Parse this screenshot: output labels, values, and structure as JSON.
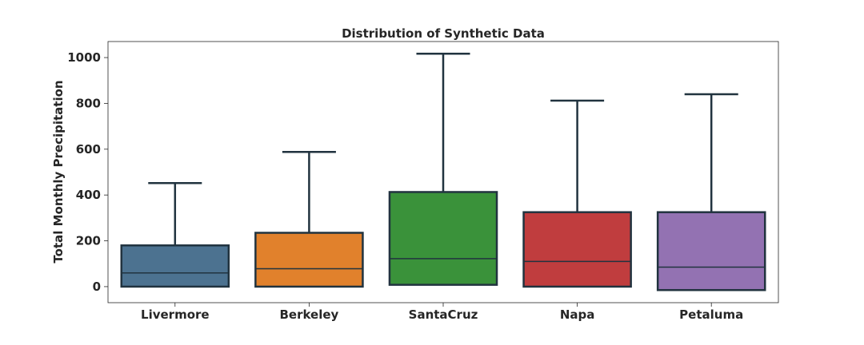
{
  "chart_data": {
    "type": "box",
    "title": "Distribution of Synthetic Data",
    "xlabel": "",
    "ylabel": "Total Monthly Precipitation",
    "ylim": [
      -70,
      1070
    ],
    "yticks": [
      0,
      200,
      400,
      600,
      800,
      1000
    ],
    "categories": [
      "Livermore",
      "Berkeley",
      "SantaCruz",
      "Napa",
      "Petaluma"
    ],
    "boxes": [
      {
        "name": "Livermore",
        "whisker_low": 0,
        "q1": 0,
        "median": 60,
        "q3": 180,
        "whisker_high": 452,
        "color": "#4c7290"
      },
      {
        "name": "Berkeley",
        "whisker_low": 0,
        "q1": 0,
        "median": 78,
        "q3": 235,
        "whisker_high": 588,
        "color": "#e1812c"
      },
      {
        "name": "SantaCruz",
        "whisker_low": 8,
        "q1": 8,
        "median": 122,
        "q3": 413,
        "whisker_high": 1017,
        "color": "#3a923a"
      },
      {
        "name": "Napa",
        "whisker_low": 0,
        "q1": 0,
        "median": 110,
        "q3": 325,
        "whisker_high": 812,
        "color": "#c03d3e"
      },
      {
        "name": "Petaluma",
        "whisker_low": -15,
        "q1": -15,
        "median": 85,
        "q3": 325,
        "whisker_high": 840,
        "color": "#9372b2"
      }
    ],
    "line_color": "#21333f",
    "grid": false,
    "legend": "none"
  }
}
